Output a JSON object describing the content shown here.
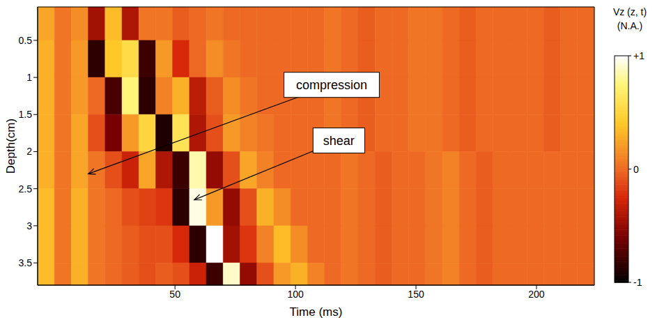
{
  "chart_data": {
    "type": "heatmap",
    "x_label": "Time (ms)",
    "y_label": "Depth(cm)",
    "xlim": [
      -7,
      224
    ],
    "xticks": [
      50,
      100,
      150,
      200
    ],
    "ylim": [
      0.05,
      3.8
    ],
    "yticks": [
      0.5,
      1,
      1.5,
      2,
      2.5,
      3,
      3.5
    ],
    "x_bins": [
      -7,
      0,
      7,
      14,
      21,
      28,
      35,
      42,
      49,
      56,
      63,
      70,
      77,
      84,
      91,
      98,
      105,
      112,
      119,
      126,
      133,
      140,
      147,
      154,
      161,
      168,
      175,
      182,
      189,
      196,
      203,
      210,
      217,
      224
    ],
    "y_bins": [
      0.05,
      0.5,
      1,
      1.5,
      2,
      2.5,
      3,
      3.5,
      3.8
    ],
    "cells": [
      [
        0.25,
        0.05,
        0.15,
        -0.45,
        0.35,
        -0.4,
        0.05,
        0.05,
        -0.05,
        0,
        0.05,
        0,
        0,
        0,
        0,
        0,
        0,
        0.05,
        0,
        -0.05,
        0,
        0,
        0.05,
        0.05,
        0,
        -0.05,
        0,
        0,
        0,
        0,
        -0.05,
        0,
        0
      ],
      [
        0.3,
        0.05,
        0.2,
        -0.85,
        0.4,
        0.55,
        -0.8,
        0.2,
        -0.25,
        0,
        0.15,
        0.05,
        0,
        0,
        0,
        0,
        0,
        0.05,
        0,
        -0.05,
        0,
        0,
        0.05,
        0.05,
        0,
        -0.05,
        0,
        0,
        0,
        0,
        -0.05,
        0,
        0
      ],
      [
        0.3,
        0.05,
        0.2,
        0,
        -0.75,
        0.75,
        -0.85,
        0.1,
        0.3,
        -0.35,
        -0.05,
        0.15,
        0.05,
        0,
        0,
        0,
        0,
        0.05,
        0,
        -0.05,
        0,
        0,
        0.05,
        0.05,
        0,
        -0.05,
        0,
        0,
        0,
        0,
        -0.05,
        0,
        0
      ],
      [
        0.3,
        0.05,
        0.25,
        -0.1,
        -0.6,
        0.2,
        0.5,
        -0.9,
        0.6,
        -0.4,
        -0.1,
        0.2,
        0.1,
        0.05,
        0,
        0,
        0,
        0.05,
        0,
        -0.05,
        0,
        0,
        0.05,
        0.05,
        0,
        -0.05,
        0,
        0,
        0,
        0,
        -0.05,
        0,
        0
      ],
      [
        0.3,
        0.05,
        0.25,
        0.05,
        -0.1,
        -0.3,
        0.25,
        -0.4,
        -0.8,
        0.85,
        -0.5,
        -0.1,
        0.25,
        0.1,
        0,
        0,
        0,
        0,
        0.05,
        0,
        -0.05,
        0,
        0,
        0.05,
        0.1,
        0,
        -0.05,
        0,
        0,
        0,
        0,
        0,
        0
      ],
      [
        0.35,
        0.05,
        0.3,
        0.05,
        0,
        -0.1,
        -0.15,
        -0.2,
        -0.85,
        0.95,
        0.2,
        -0.5,
        -0.1,
        0.3,
        0.15,
        0,
        0,
        0,
        0.05,
        0,
        -0.05,
        0,
        0,
        0.05,
        0.1,
        0,
        -0.05,
        0,
        0,
        0,
        0,
        0,
        0
      ],
      [
        0.35,
        0.05,
        0.3,
        0.05,
        0,
        -0.05,
        -0.1,
        -0.1,
        -0.25,
        -0.85,
        1,
        -0.45,
        -0.2,
        0.1,
        0.35,
        0.15,
        0,
        0,
        0.05,
        0,
        -0.05,
        0,
        0,
        0.05,
        0.1,
        0,
        -0.05,
        0,
        0,
        0,
        0,
        0,
        0
      ],
      [
        0.35,
        0.05,
        0.3,
        0.05,
        0,
        -0.05,
        -0.1,
        -0.05,
        -0.1,
        -0.3,
        -0.8,
        0.9,
        -0.5,
        -0.1,
        0.2,
        0.3,
        0.1,
        0,
        0.05,
        0,
        -0.05,
        0,
        0,
        0.05,
        0.1,
        0,
        -0.05,
        0,
        0,
        0,
        0,
        0,
        0
      ]
    ],
    "colorbar": {
      "label": [
        "Vz (z, t)",
        "(N.A.)"
      ],
      "range": [
        -1,
        1
      ],
      "ticks": [
        {
          "value": 1,
          "label": "+1"
        },
        0,
        -1
      ]
    },
    "annotations": [
      {
        "text": "compression",
        "x": 14,
        "y": 2.3,
        "text_x": 115,
        "text_y": 1.1
      },
      {
        "text": "shear",
        "x": 58,
        "y": 2.65,
        "text_x": 118,
        "text_y": 1.85
      }
    ]
  }
}
